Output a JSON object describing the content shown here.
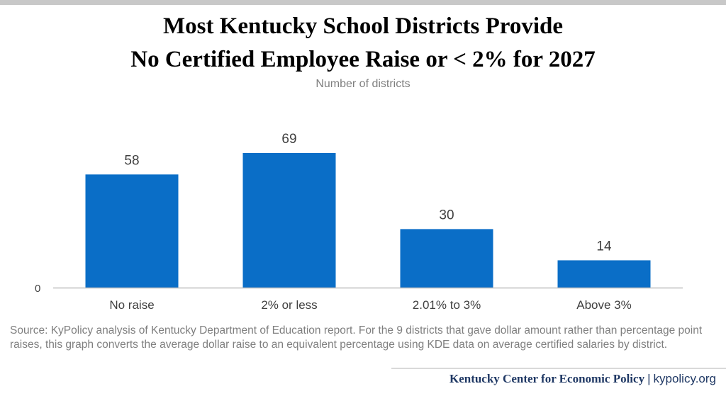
{
  "title_lines": [
    "Most Kentucky School Districts Provide",
    "No Certified Employee Raise or < 2% for 2027"
  ],
  "footer": {
    "org": "Kentucky Center for Economic Policy",
    "separator": "|",
    "url": "kypolicy.org"
  },
  "colors": {
    "bar": "#0a6ec7",
    "text": "#000000",
    "muted": "#7f7f7f",
    "footer": "#1f3864"
  },
  "chart_data": {
    "type": "bar",
    "title": "Most Kentucky School Districts Provide No Certified Employee Raise or < 2% for 2027",
    "subtitle": "Number of districts",
    "categories": [
      "No raise",
      "2% or less",
      "2.01% to 3%",
      "Above 3%"
    ],
    "values": [
      58,
      69,
      30,
      14
    ],
    "data_labels": [
      "58",
      "69",
      "30",
      "14"
    ],
    "y_tick_labels": [
      "0"
    ],
    "ylim": [
      0,
      75
    ],
    "grid": false,
    "legend": "none",
    "source": "Source: KyPolicy analysis of Kentucky Department of Education report. For the 9 districts that gave dollar amount rather than percentage point raises, this graph converts the average dollar raise to an equivalent percentage using KDE data on average certified salaries by district."
  }
}
